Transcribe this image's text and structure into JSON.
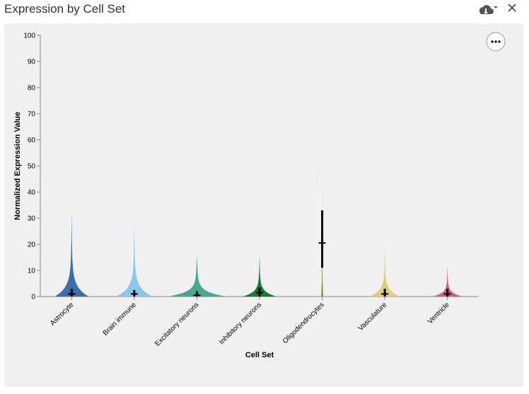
{
  "chart_data": {
    "type": "violin",
    "title": "Expression by Cell Set",
    "x_label": "Cell Set",
    "y_label": "Normalized Expression Value",
    "ylim": [
      0,
      100
    ],
    "yticks": [
      0,
      10,
      20,
      30,
      40,
      50,
      60,
      70,
      80,
      90,
      100
    ],
    "categories": [
      "Astrocyte",
      "Brain immune",
      "Excitatory neurons",
      "Inhibitory neurons",
      "Oligodendrocytes",
      "Vasculature",
      "Ventricle"
    ],
    "colors": [
      "#3c6faa",
      "#89c8ee",
      "#45a990",
      "#187a35",
      "#8a9a2a",
      "#dfcd78",
      "#d65f78"
    ],
    "max": [
      32,
      28,
      16,
      16,
      60,
      20,
      12
    ],
    "q1": [
      0,
      0,
      0,
      0,
      11,
      0,
      0
    ],
    "median": [
      1,
      1,
      0.5,
      1.5,
      20.5,
      1,
      1
    ],
    "q3": [
      3,
      2.5,
      2,
      3.5,
      33,
      3,
      3
    ]
  }
}
